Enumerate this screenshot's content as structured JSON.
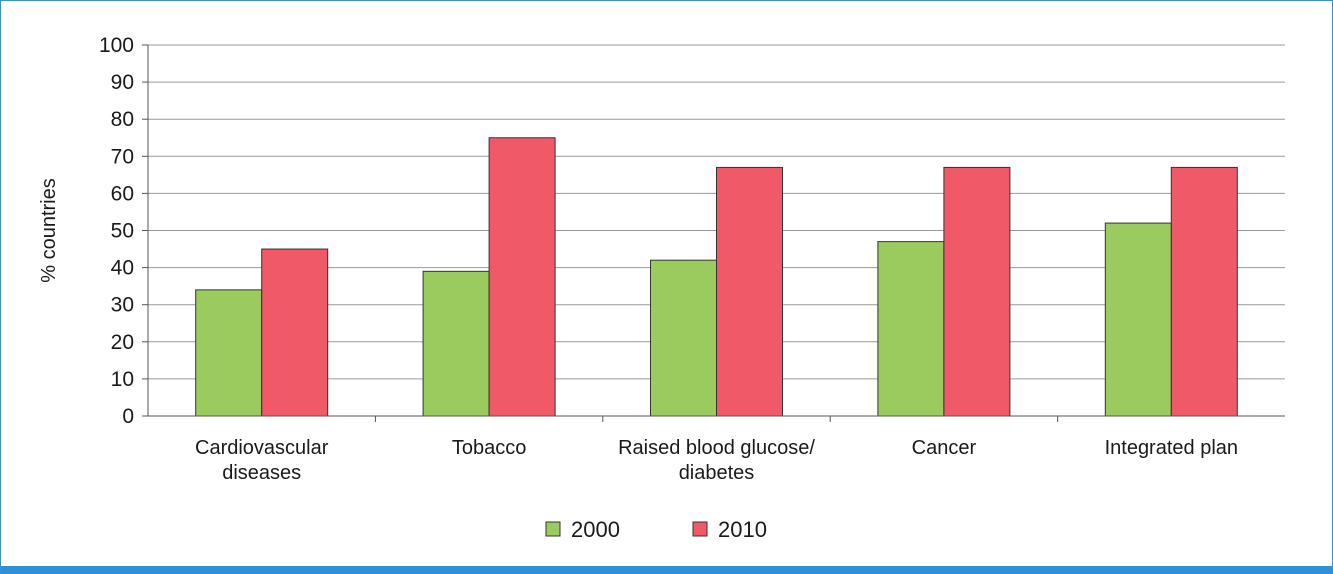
{
  "chart_data": {
    "type": "bar",
    "title": "",
    "xlabel": "",
    "ylabel": "% countries",
    "ylim": [
      0,
      100
    ],
    "yticks": [
      0,
      10,
      20,
      30,
      40,
      50,
      60,
      70,
      80,
      90,
      100
    ],
    "grid": true,
    "legend_position": "bottom",
    "categories": [
      [
        "Cardiovascular",
        "diseases"
      ],
      [
        "Tobacco"
      ],
      [
        "Raised blood glucose/",
        "diabetes"
      ],
      [
        "Cancer"
      ],
      [
        "Integrated plan"
      ]
    ],
    "series": [
      {
        "name": "2000",
        "color": "#9bcb5f",
        "values": [
          34,
          39,
          42,
          47,
          52
        ]
      },
      {
        "name": "2010",
        "color": "#f05a68",
        "values": [
          45,
          75,
          67,
          67,
          67
        ]
      }
    ]
  }
}
